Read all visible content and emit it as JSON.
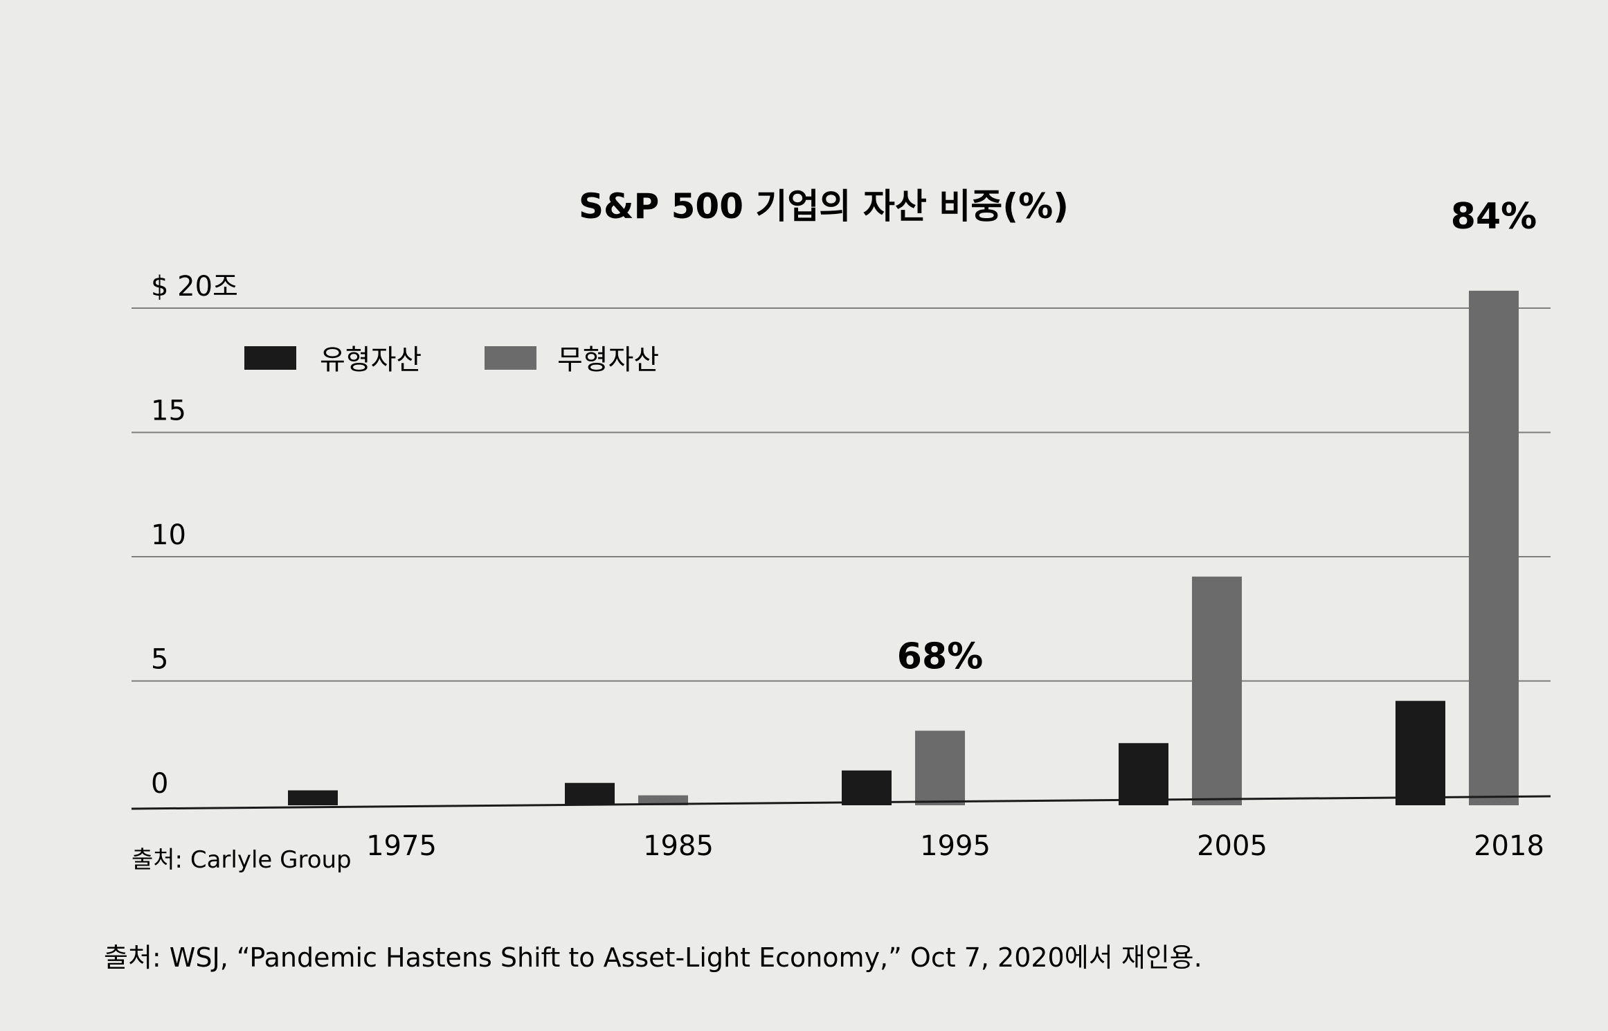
{
  "chart_data": {
    "type": "bar",
    "title": "S&P 500 기업의 자산 비중(%)",
    "categories": [
      "1975",
      "1985",
      "1995",
      "2005",
      "2018"
    ],
    "series": [
      {
        "name": "유형자산",
        "values": [
          0.6,
          0.9,
          1.4,
          2.5,
          4.2
        ],
        "color": "#1a1a1a"
      },
      {
        "name": "무형자산",
        "values": [
          0.0,
          0.4,
          3.0,
          9.2,
          20.7
        ],
        "color": "#6b6b6b"
      }
    ],
    "ylim": [
      0,
      20
    ],
    "yticks": [
      0,
      5,
      10,
      15,
      20
    ],
    "ytick_labels": [
      "0",
      "5",
      "10",
      "15",
      "$ 20조"
    ],
    "annotations": [
      {
        "category": "1995",
        "text": "68%"
      },
      {
        "category": "2018",
        "text": "84%"
      }
    ],
    "legend_position": "top-left",
    "grid": true,
    "source": "출처: Carlyle Group"
  },
  "footnote": "출처: WSJ, “Pandemic Hastens Shift to Asset-Light Economy,” Oct 7, 2020에서 재인용."
}
